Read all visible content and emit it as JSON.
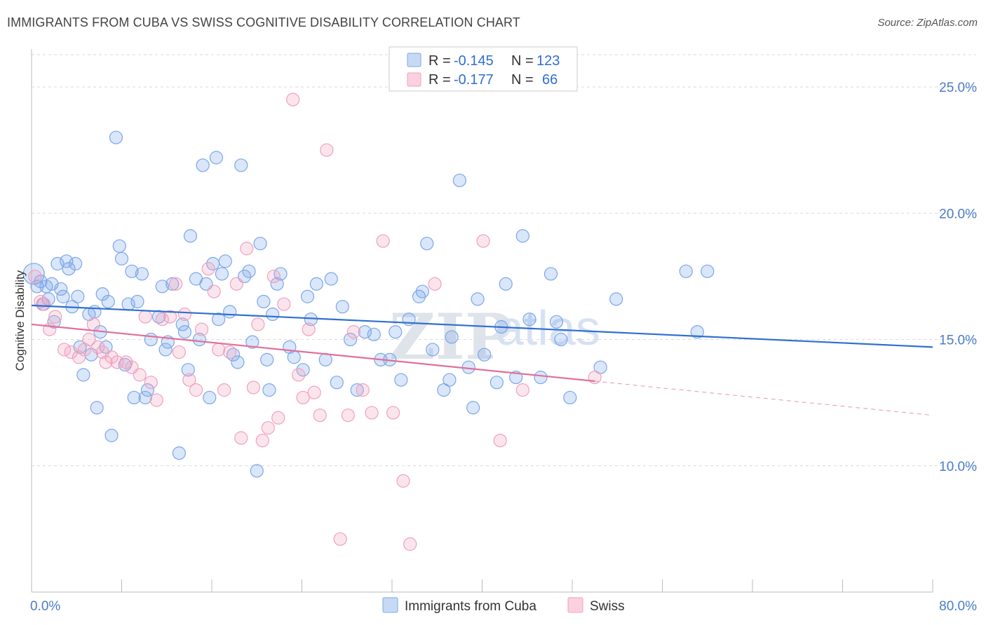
{
  "header": {
    "title": "IMMIGRANTS FROM CUBA VS SWISS COGNITIVE DISABILITY CORRELATION CHART",
    "source": "Source: ZipAtlas.com"
  },
  "watermark": {
    "zip": "ZIP",
    "atlas": "atlas"
  },
  "legend": {
    "rows": [
      {
        "r_label": "R =",
        "r_value": "-0.145",
        "n_label": "N =",
        "n_value": "123",
        "color": "#7ba7e8"
      },
      {
        "r_label": "R =",
        "r_value": "-0.177",
        "n_label": "N =",
        "n_value": "66",
        "color": "#f0a0bd"
      }
    ]
  },
  "chart_data": {
    "type": "scatter",
    "title": "IMMIGRANTS FROM CUBA VS SWISS COGNITIVE DISABILITY CORRELATION CHART",
    "xlabel": "",
    "ylabel": "Cognitive Disability",
    "xlim": [
      0,
      80
    ],
    "ylim": [
      5,
      26.5
    ],
    "x_tick_labels": [
      "0.0%",
      "80.0%"
    ],
    "y_ticks": [
      10,
      15,
      20,
      25
    ],
    "y_tick_labels": [
      "10.0%",
      "15.0%",
      "20.0%",
      "25.0%"
    ],
    "grid": true,
    "legend_position": "top-center",
    "series": [
      {
        "name": "Immigrants from Cuba",
        "color": "#7ba7e8",
        "trend": {
          "x": [
            0,
            80
          ],
          "y": [
            16.35,
            14.7
          ]
        },
        "points": [
          [
            0.2,
            17.6
          ],
          [
            0.5,
            17.1
          ],
          [
            0.8,
            17.3
          ],
          [
            1.0,
            16.4
          ],
          [
            1.3,
            17.1
          ],
          [
            1.5,
            16.6
          ],
          [
            1.8,
            17.2
          ],
          [
            2.0,
            15.7
          ],
          [
            2.3,
            18.0
          ],
          [
            2.6,
            17.0
          ],
          [
            2.8,
            16.7
          ],
          [
            3.1,
            18.1
          ],
          [
            3.3,
            17.8
          ],
          [
            3.6,
            16.3
          ],
          [
            3.9,
            18.0
          ],
          [
            4.1,
            16.7
          ],
          [
            4.3,
            14.7
          ],
          [
            4.6,
            13.6
          ],
          [
            5.1,
            16.0
          ],
          [
            5.3,
            14.4
          ],
          [
            5.6,
            16.1
          ],
          [
            5.8,
            12.3
          ],
          [
            6.1,
            15.3
          ],
          [
            6.3,
            16.8
          ],
          [
            6.6,
            14.7
          ],
          [
            6.8,
            16.5
          ],
          [
            7.1,
            11.2
          ],
          [
            7.5,
            23.0
          ],
          [
            7.8,
            18.7
          ],
          [
            8.0,
            18.2
          ],
          [
            8.3,
            14.0
          ],
          [
            8.6,
            16.4
          ],
          [
            8.9,
            17.7
          ],
          [
            9.1,
            12.7
          ],
          [
            9.4,
            16.5
          ],
          [
            9.8,
            17.6
          ],
          [
            10.1,
            12.7
          ],
          [
            10.3,
            13.0
          ],
          [
            10.6,
            15.0
          ],
          [
            11.3,
            15.9
          ],
          [
            11.6,
            17.1
          ],
          [
            11.9,
            14.6
          ],
          [
            12.1,
            14.9
          ],
          [
            12.5,
            17.2
          ],
          [
            13.1,
            10.5
          ],
          [
            13.4,
            15.6
          ],
          [
            13.6,
            15.3
          ],
          [
            13.9,
            13.8
          ],
          [
            14.1,
            19.1
          ],
          [
            14.6,
            17.4
          ],
          [
            14.9,
            15.0
          ],
          [
            15.2,
            21.9
          ],
          [
            15.5,
            17.2
          ],
          [
            15.8,
            12.7
          ],
          [
            16.1,
            18.0
          ],
          [
            16.4,
            22.2
          ],
          [
            16.6,
            15.8
          ],
          [
            16.9,
            17.6
          ],
          [
            17.2,
            18.1
          ],
          [
            17.6,
            16.1
          ],
          [
            17.9,
            14.4
          ],
          [
            18.3,
            14.1
          ],
          [
            18.6,
            21.9
          ],
          [
            18.9,
            17.5
          ],
          [
            19.3,
            17.7
          ],
          [
            19.6,
            14.9
          ],
          [
            20.0,
            9.8
          ],
          [
            20.3,
            18.8
          ],
          [
            20.6,
            16.5
          ],
          [
            20.9,
            14.2
          ],
          [
            21.1,
            13.0
          ],
          [
            21.4,
            16.0
          ],
          [
            21.8,
            17.2
          ],
          [
            22.1,
            17.6
          ],
          [
            22.9,
            14.7
          ],
          [
            23.3,
            14.3
          ],
          [
            24.1,
            13.8
          ],
          [
            24.5,
            16.7
          ],
          [
            24.8,
            15.8
          ],
          [
            25.3,
            17.2
          ],
          [
            26.1,
            14.2
          ],
          [
            26.6,
            17.4
          ],
          [
            27.1,
            13.3
          ],
          [
            27.6,
            16.3
          ],
          [
            28.3,
            15.0
          ],
          [
            28.9,
            13.0
          ],
          [
            29.6,
            15.3
          ],
          [
            30.4,
            15.2
          ],
          [
            31.0,
            14.2
          ],
          [
            31.8,
            14.2
          ],
          [
            32.3,
            15.3
          ],
          [
            32.8,
            13.4
          ],
          [
            33.5,
            15.8
          ],
          [
            34.4,
            16.7
          ],
          [
            34.7,
            16.9
          ],
          [
            35.1,
            18.8
          ],
          [
            35.6,
            14.6
          ],
          [
            36.6,
            13.0
          ],
          [
            37.1,
            13.4
          ],
          [
            37.3,
            15.1
          ],
          [
            38.0,
            21.3
          ],
          [
            38.8,
            13.9
          ],
          [
            39.2,
            12.3
          ],
          [
            39.6,
            16.6
          ],
          [
            40.2,
            14.4
          ],
          [
            41.3,
            13.3
          ],
          [
            41.7,
            15.5
          ],
          [
            42.1,
            17.2
          ],
          [
            43.0,
            13.5
          ],
          [
            43.6,
            19.1
          ],
          [
            44.2,
            15.8
          ],
          [
            45.2,
            13.5
          ],
          [
            46.1,
            17.6
          ],
          [
            46.6,
            15.7
          ],
          [
            47.0,
            15.0
          ],
          [
            47.8,
            12.7
          ],
          [
            50.5,
            13.9
          ],
          [
            51.9,
            16.6
          ],
          [
            58.1,
            17.7
          ],
          [
            59.1,
            15.3
          ],
          [
            60.0,
            17.7
          ]
        ]
      },
      {
        "name": "Swiss",
        "color": "#f0a0bd",
        "trend": {
          "x": [
            0,
            50
          ],
          "y": [
            15.6,
            13.35
          ]
        },
        "trend_dashed": {
          "x": [
            50,
            80
          ],
          "y": [
            13.35,
            12.0
          ]
        },
        "points": [
          [
            0.3,
            17.5
          ],
          [
            0.8,
            16.5
          ],
          [
            1.1,
            16.4
          ],
          [
            1.6,
            15.4
          ],
          [
            2.1,
            15.9
          ],
          [
            2.9,
            14.6
          ],
          [
            3.5,
            14.5
          ],
          [
            4.2,
            14.3
          ],
          [
            4.7,
            14.6
          ],
          [
            5.1,
            15.0
          ],
          [
            5.5,
            15.6
          ],
          [
            5.9,
            14.7
          ],
          [
            6.3,
            14.5
          ],
          [
            6.6,
            14.1
          ],
          [
            7.1,
            14.3
          ],
          [
            7.6,
            14.1
          ],
          [
            8.4,
            14.1
          ],
          [
            8.9,
            13.9
          ],
          [
            9.6,
            13.6
          ],
          [
            10.1,
            15.9
          ],
          [
            10.6,
            13.3
          ],
          [
            11.1,
            12.6
          ],
          [
            11.6,
            15.8
          ],
          [
            12.3,
            15.9
          ],
          [
            12.8,
            17.2
          ],
          [
            13.1,
            14.5
          ],
          [
            13.6,
            16.0
          ],
          [
            14.0,
            13.4
          ],
          [
            14.6,
            13.0
          ],
          [
            15.1,
            15.4
          ],
          [
            15.7,
            17.8
          ],
          [
            16.2,
            16.9
          ],
          [
            16.6,
            14.6
          ],
          [
            17.1,
            13.0
          ],
          [
            17.6,
            14.5
          ],
          [
            18.2,
            17.2
          ],
          [
            18.6,
            11.1
          ],
          [
            19.1,
            18.6
          ],
          [
            19.7,
            13.1
          ],
          [
            20.1,
            15.6
          ],
          [
            20.5,
            11.0
          ],
          [
            21.0,
            11.5
          ],
          [
            21.5,
            17.5
          ],
          [
            21.9,
            11.9
          ],
          [
            22.4,
            16.4
          ],
          [
            23.2,
            24.5
          ],
          [
            23.7,
            13.6
          ],
          [
            24.1,
            12.7
          ],
          [
            24.6,
            15.4
          ],
          [
            25.1,
            12.9
          ],
          [
            25.6,
            12.0
          ],
          [
            26.2,
            22.5
          ],
          [
            27.4,
            7.1
          ],
          [
            28.1,
            12.0
          ],
          [
            28.6,
            15.3
          ],
          [
            29.4,
            13.0
          ],
          [
            30.2,
            12.1
          ],
          [
            31.2,
            18.9
          ],
          [
            32.1,
            12.1
          ],
          [
            33.0,
            9.4
          ],
          [
            33.6,
            6.9
          ],
          [
            35.8,
            17.2
          ],
          [
            40.1,
            18.9
          ],
          [
            41.6,
            11.0
          ],
          [
            43.6,
            13.0
          ],
          [
            50.0,
            13.5
          ]
        ]
      }
    ]
  }
}
